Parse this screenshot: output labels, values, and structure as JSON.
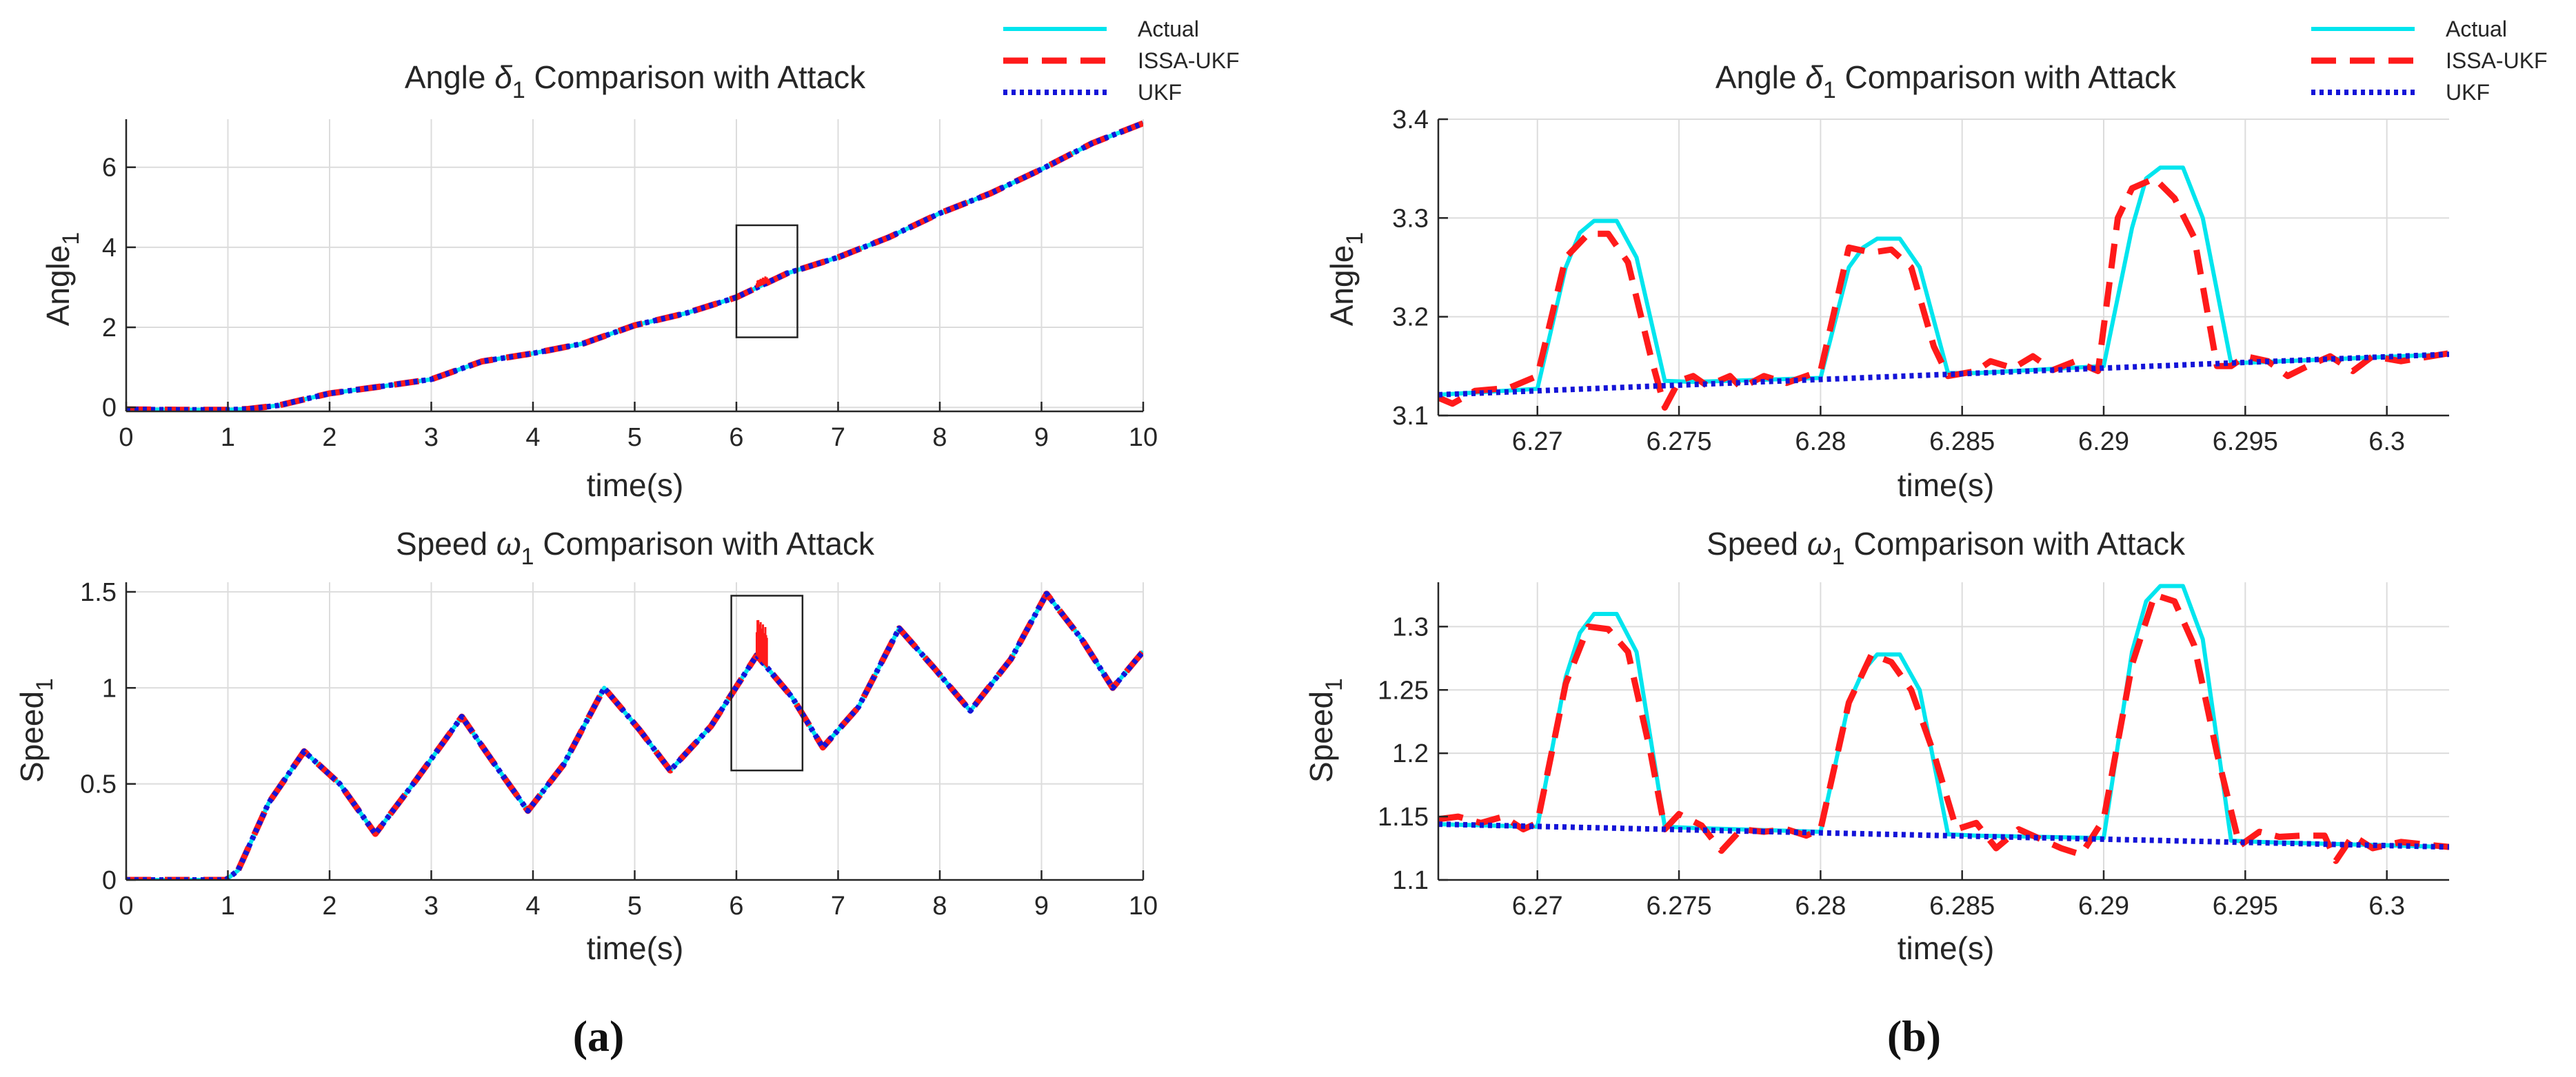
{
  "figure": {
    "captions": {
      "a": "(a)",
      "b": "(b)"
    },
    "legend": [
      {
        "label": "Actual",
        "color": "#00e5ee",
        "style": "solid"
      },
      {
        "label": "ISSA-UKF",
        "color": "#ff1a1a",
        "style": "dashed"
      },
      {
        "label": "UKF",
        "color": "#1414d8",
        "style": "dotted"
      }
    ]
  },
  "chart_data": [
    {
      "id": "a-angle",
      "type": "line",
      "title_pre": "Angle ",
      "title_sym": "δ",
      "title_sub": "1",
      "title_post": " Comparison with Attack",
      "xlabel": "time(s)",
      "ylabel": "Angle",
      "ylabel_sub": "1",
      "xlim": [
        0,
        10
      ],
      "ylim": [
        -0.1,
        7.2
      ],
      "xticks": [
        0,
        1,
        2,
        3,
        4,
        5,
        6,
        7,
        8,
        9,
        10
      ],
      "xtick_labels": [
        "0",
        "1",
        "2",
        "3",
        "4",
        "5",
        "6",
        "7",
        "8",
        "9",
        "10"
      ],
      "yticks": [
        0,
        2,
        4,
        6
      ],
      "ytick_labels": [
        "0",
        "2",
        "4",
        "6"
      ],
      "grid": true,
      "zoom_box": {
        "x": [
          6.0,
          6.6
        ],
        "y": [
          1.75,
          4.55
        ]
      },
      "spikes": {
        "x": [
          6.2,
          6.3
        ],
        "delta": 0.18
      },
      "series": [
        {
          "name": "Actual",
          "x": [
            0,
            0.5,
            1.0,
            1.2,
            1.5,
            2.0,
            2.5,
            3.0,
            3.5,
            4.0,
            4.5,
            5.0,
            5.5,
            6.0,
            6.5,
            7.0,
            7.5,
            8.0,
            8.5,
            9.0,
            9.5,
            10.0
          ],
          "y": [
            -0.05,
            -0.06,
            -0.06,
            -0.04,
            0.05,
            0.35,
            0.52,
            0.7,
            1.15,
            1.35,
            1.6,
            2.05,
            2.35,
            2.75,
            3.35,
            3.75,
            4.25,
            4.85,
            5.35,
            5.95,
            6.6,
            7.1
          ]
        },
        {
          "name": "ISSA-UKF",
          "x": [
            0,
            0.5,
            1.0,
            1.2,
            1.5,
            2.0,
            2.5,
            3.0,
            3.5,
            4.0,
            4.5,
            5.0,
            5.5,
            6.0,
            6.5,
            7.0,
            7.5,
            8.0,
            8.5,
            9.0,
            9.5,
            10.0
          ],
          "y": [
            -0.05,
            -0.06,
            -0.06,
            -0.04,
            0.05,
            0.35,
            0.52,
            0.7,
            1.15,
            1.35,
            1.6,
            2.05,
            2.35,
            2.75,
            3.35,
            3.75,
            4.25,
            4.85,
            5.35,
            5.95,
            6.6,
            7.1
          ]
        },
        {
          "name": "UKF",
          "x": [
            0,
            0.5,
            1.0,
            1.2,
            1.5,
            2.0,
            2.5,
            3.0,
            3.5,
            4.0,
            4.5,
            5.0,
            5.5,
            6.0,
            6.5,
            7.0,
            7.5,
            8.0,
            8.5,
            9.0,
            9.5,
            10.0
          ],
          "y": [
            -0.05,
            -0.06,
            -0.06,
            -0.04,
            0.05,
            0.35,
            0.52,
            0.7,
            1.15,
            1.35,
            1.6,
            2.05,
            2.35,
            2.75,
            3.35,
            3.75,
            4.25,
            4.85,
            5.35,
            5.95,
            6.6,
            7.1
          ]
        }
      ]
    },
    {
      "id": "a-speed",
      "type": "line",
      "title_pre": "Speed ",
      "title_sym": "ω",
      "title_sub": "1",
      "title_post": " Comparison with Attack",
      "xlabel": "time(s)",
      "ylabel": "Speed",
      "ylabel_sub": "1",
      "xlim": [
        0,
        10
      ],
      "ylim": [
        0,
        1.55
      ],
      "xticks": [
        0,
        1,
        2,
        3,
        4,
        5,
        6,
        7,
        8,
        9,
        10
      ],
      "xtick_labels": [
        "0",
        "1",
        "2",
        "3",
        "4",
        "5",
        "6",
        "7",
        "8",
        "9",
        "10"
      ],
      "yticks": [
        0,
        0.5,
        1,
        1.5
      ],
      "ytick_labels": [
        "0",
        "0.5",
        "1",
        "1.5"
      ],
      "grid": true,
      "zoom_box": {
        "x": [
          5.95,
          6.65
        ],
        "y": [
          0.57,
          1.48
        ]
      },
      "spikes": {
        "x": [
          6.2,
          6.3
        ],
        "delta": 0.2
      },
      "series": [
        {
          "name": "Actual",
          "x": [
            0,
            0.5,
            0.98,
            1.1,
            1.4,
            1.75,
            2.1,
            2.45,
            2.85,
            3.3,
            3.6,
            3.95,
            4.3,
            4.7,
            5.05,
            5.35,
            5.75,
            6.2,
            6.55,
            6.85,
            7.2,
            7.6,
            7.95,
            8.3,
            8.7,
            9.05,
            9.4,
            9.7,
            10.0
          ],
          "y": [
            0,
            0,
            0,
            0.05,
            0.4,
            0.67,
            0.5,
            0.24,
            0.52,
            0.85,
            0.62,
            0.36,
            0.6,
            1.0,
            0.78,
            0.57,
            0.8,
            1.17,
            0.95,
            0.69,
            0.9,
            1.31,
            1.1,
            0.88,
            1.15,
            1.49,
            1.25,
            1.0,
            1.19
          ]
        },
        {
          "name": "ISSA-UKF",
          "x": [
            0,
            0.5,
            0.98,
            1.1,
            1.4,
            1.75,
            2.1,
            2.45,
            2.85,
            3.3,
            3.6,
            3.95,
            4.3,
            4.7,
            5.05,
            5.35,
            5.75,
            6.2,
            6.55,
            6.85,
            7.2,
            7.6,
            7.95,
            8.3,
            8.7,
            9.05,
            9.4,
            9.7,
            10.0
          ],
          "y": [
            0,
            0,
            0,
            0.05,
            0.4,
            0.67,
            0.5,
            0.24,
            0.52,
            0.85,
            0.62,
            0.36,
            0.6,
            1.0,
            0.78,
            0.57,
            0.8,
            1.17,
            0.95,
            0.69,
            0.9,
            1.31,
            1.1,
            0.88,
            1.15,
            1.49,
            1.25,
            1.0,
            1.19
          ]
        },
        {
          "name": "UKF",
          "x": [
            0,
            0.5,
            0.98,
            1.1,
            1.4,
            1.75,
            2.1,
            2.45,
            2.85,
            3.3,
            3.6,
            3.95,
            4.3,
            4.7,
            5.05,
            5.35,
            5.75,
            6.2,
            6.55,
            6.85,
            7.2,
            7.6,
            7.95,
            8.3,
            8.7,
            9.05,
            9.4,
            9.7,
            10.0
          ],
          "y": [
            0,
            0,
            0,
            0.05,
            0.4,
            0.67,
            0.5,
            0.24,
            0.52,
            0.85,
            0.62,
            0.36,
            0.6,
            1.0,
            0.78,
            0.57,
            0.8,
            1.17,
            0.95,
            0.69,
            0.9,
            1.31,
            1.1,
            0.88,
            1.15,
            1.49,
            1.25,
            1.0,
            1.19
          ]
        }
      ]
    },
    {
      "id": "b-angle",
      "type": "line",
      "title_pre": "Angle ",
      "title_sym": "δ",
      "title_sub": "1",
      "title_post": " Comparison with Attack",
      "xlabel": "time(s)",
      "ylabel": "Angle",
      "ylabel_sub": "1",
      "xlim": [
        6.2665,
        6.3022
      ],
      "ylim": [
        3.1,
        3.4
      ],
      "xticks": [
        6.27,
        6.275,
        6.28,
        6.285,
        6.29,
        6.295,
        6.3
      ],
      "xtick_labels": [
        "6.27",
        "6.275",
        "6.28",
        "6.285",
        "6.29",
        "6.295",
        "6.3"
      ],
      "yticks": [
        3.1,
        3.2,
        3.3,
        3.4
      ],
      "ytick_labels": [
        "3.1",
        "3.2",
        "3.3",
        "3.4"
      ],
      "grid": true,
      "series": [
        {
          "name": "Actual",
          "x": [
            6.2665,
            6.27,
            6.271,
            6.2715,
            6.272,
            6.2728,
            6.2735,
            6.2745,
            6.2755,
            6.28,
            6.281,
            6.2815,
            6.282,
            6.2828,
            6.2835,
            6.2845,
            6.2855,
            6.29,
            6.291,
            6.2915,
            6.292,
            6.2928,
            6.2935,
            6.2945,
            6.2955,
            6.3022
          ],
          "y": [
            3.121,
            3.127,
            3.25,
            3.285,
            3.297,
            3.297,
            3.26,
            3.135,
            3.134,
            3.138,
            3.25,
            3.27,
            3.279,
            3.279,
            3.25,
            3.143,
            3.143,
            3.15,
            3.29,
            3.34,
            3.351,
            3.351,
            3.3,
            3.153,
            3.154,
            3.162
          ]
        },
        {
          "name": "ISSA-UKF",
          "x": [
            6.2665,
            6.267,
            6.2678,
            6.269,
            6.27,
            6.271,
            6.2718,
            6.2725,
            6.2732,
            6.274,
            6.2745,
            6.275,
            6.2755,
            6.276,
            6.2768,
            6.2772,
            6.278,
            6.2788,
            6.28,
            6.281,
            6.2818,
            6.2825,
            6.2832,
            6.284,
            6.2845,
            6.2855,
            6.286,
            6.2868,
            6.2875,
            6.2882,
            6.289,
            6.2898,
            6.2905,
            6.291,
            6.2918,
            6.2925,
            6.2932,
            6.294,
            6.2945,
            6.295,
            6.2958,
            6.2965,
            6.2972,
            6.298,
            6.2988,
            6.2995,
            6.3005,
            6.3022
          ],
          "y": [
            3.118,
            3.112,
            3.125,
            3.128,
            3.14,
            3.26,
            3.284,
            3.284,
            3.255,
            3.16,
            3.108,
            3.135,
            3.14,
            3.13,
            3.14,
            3.128,
            3.14,
            3.133,
            3.145,
            3.27,
            3.265,
            3.268,
            3.25,
            3.17,
            3.14,
            3.145,
            3.155,
            3.148,
            3.16,
            3.146,
            3.155,
            3.145,
            3.3,
            3.33,
            3.34,
            3.32,
            3.28,
            3.15,
            3.15,
            3.16,
            3.155,
            3.14,
            3.15,
            3.16,
            3.145,
            3.16,
            3.155,
            3.163
          ]
        },
        {
          "name": "UKF",
          "x": [
            6.2665,
            6.3022
          ],
          "y": [
            3.121,
            3.162
          ]
        }
      ]
    },
    {
      "id": "b-speed",
      "type": "line",
      "title_pre": "Speed ",
      "title_sym": "ω",
      "title_sub": "1",
      "title_post": " Comparison with Attack",
      "xlabel": "time(s)",
      "ylabel": "Speed",
      "ylabel_sub": "1",
      "xlim": [
        6.2665,
        6.3022
      ],
      "ylim": [
        1.1,
        1.335
      ],
      "xticks": [
        6.27,
        6.275,
        6.28,
        6.285,
        6.29,
        6.295,
        6.3
      ],
      "xtick_labels": [
        "6.27",
        "6.275",
        "6.28",
        "6.285",
        "6.29",
        "6.295",
        "6.3"
      ],
      "yticks": [
        1.1,
        1.15,
        1.2,
        1.25,
        1.3
      ],
      "ytick_labels": [
        "1.1",
        "1.15",
        "1.2",
        "1.25",
        "1.3"
      ],
      "grid": true,
      "series": [
        {
          "name": "Actual",
          "x": [
            6.2665,
            6.27,
            6.271,
            6.2715,
            6.272,
            6.2728,
            6.2735,
            6.2745,
            6.2755,
            6.28,
            6.281,
            6.2815,
            6.282,
            6.2828,
            6.2835,
            6.2845,
            6.2855,
            6.29,
            6.291,
            6.2915,
            6.292,
            6.2928,
            6.2935,
            6.2945,
            6.2955,
            6.3022
          ],
          "y": [
            1.144,
            1.142,
            1.26,
            1.295,
            1.31,
            1.31,
            1.28,
            1.142,
            1.141,
            1.138,
            1.24,
            1.265,
            1.278,
            1.278,
            1.25,
            1.136,
            1.135,
            1.133,
            1.28,
            1.32,
            1.332,
            1.332,
            1.29,
            1.131,
            1.13,
            1.126
          ]
        },
        {
          "name": "ISSA-UKF",
          "x": [
            6.2665,
            6.2672,
            6.268,
            6.2688,
            6.2695,
            6.27,
            6.271,
            6.2718,
            6.2725,
            6.2732,
            6.274,
            6.2745,
            6.275,
            6.2758,
            6.2765,
            6.2772,
            6.278,
            6.2788,
            6.2795,
            6.28,
            6.281,
            6.2818,
            6.2825,
            6.2832,
            6.284,
            6.2848,
            6.2855,
            6.2862,
            6.287,
            6.2878,
            6.2885,
            6.2892,
            6.29,
            6.291,
            6.2918,
            6.2925,
            6.2932,
            6.294,
            6.2948,
            6.2955,
            6.2962,
            6.297,
            6.2978,
            6.2982,
            6.2988,
            6.2995,
            6.3005,
            6.3022
          ],
          "y": [
            1.148,
            1.15,
            1.145,
            1.15,
            1.14,
            1.145,
            1.255,
            1.3,
            1.298,
            1.28,
            1.2,
            1.14,
            1.152,
            1.143,
            1.123,
            1.14,
            1.138,
            1.14,
            1.135,
            1.14,
            1.24,
            1.278,
            1.272,
            1.25,
            1.2,
            1.14,
            1.145,
            1.125,
            1.14,
            1.132,
            1.125,
            1.12,
            1.148,
            1.27,
            1.325,
            1.32,
            1.285,
            1.2,
            1.127,
            1.138,
            1.134,
            1.135,
            1.135,
            1.115,
            1.135,
            1.125,
            1.13,
            1.126
          ]
        },
        {
          "name": "UKF",
          "x": [
            6.2665,
            6.3022
          ],
          "y": [
            1.144,
            1.126
          ]
        }
      ]
    }
  ]
}
